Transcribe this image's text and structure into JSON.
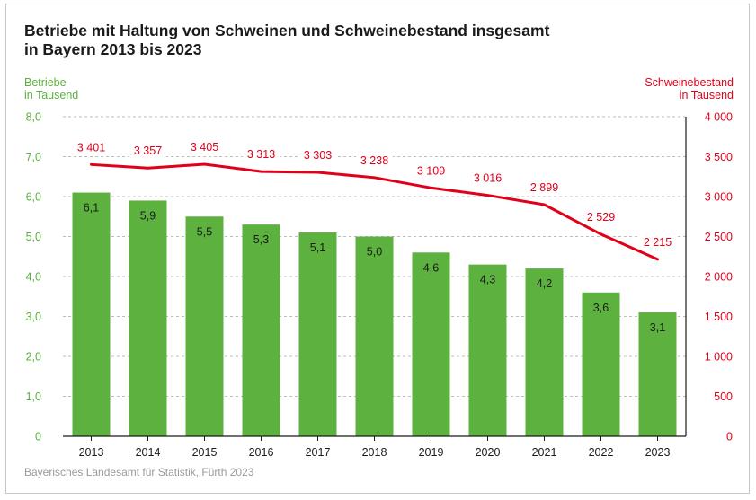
{
  "title": {
    "line1": "Betriebe mit Haltung von Schweinen und Schweinebestand insgesamt",
    "line2": "in Bayern 2013 bis 2023"
  },
  "left_axis_title": {
    "line1": "Betriebe",
    "line2": "in Tausend"
  },
  "right_axis_title": {
    "line1": "Schweinebestand",
    "line2": "in Tausend"
  },
  "source": "Bayerisches Landesamt für Statistik, Fürth 2023",
  "colors": {
    "bars": "#5cb13f",
    "line": "#e1001a",
    "grid": "#bdbdbd",
    "text": "#1a1a1a"
  },
  "chart_data": {
    "type": "bar",
    "title": "Betriebe mit Haltung von Schweinen und Schweinebestand insgesamt in Bayern 2013 bis 2023",
    "categories": [
      "2013",
      "2014",
      "2015",
      "2016",
      "2017",
      "2018",
      "2019",
      "2020",
      "2021",
      "2022",
      "2023"
    ],
    "series": [
      {
        "type": "bar",
        "axis": "left",
        "values": [
          6.1,
          5.9,
          5.5,
          5.3,
          5.1,
          5.0,
          4.6,
          4.3,
          4.2,
          3.6,
          3.1
        ],
        "labels": [
          "6,1",
          "5,9",
          "5,5",
          "5,3",
          "5,1",
          "5,0",
          "4,6",
          "4,3",
          "4,2",
          "3,6",
          "3,1"
        ]
      },
      {
        "type": "line",
        "axis": "right",
        "values": [
          3401,
          3357,
          3405,
          3313,
          3303,
          3238,
          3109,
          3016,
          2899,
          2529,
          2215
        ],
        "labels": [
          "3 401",
          "3 357",
          "3 405",
          "3 313",
          "3 303",
          "3 238",
          "3 109",
          "3 016",
          "2 899",
          "2 529",
          "2 215"
        ]
      }
    ],
    "ylabel": "Betriebe in Tausend",
    "y2label": "Schweinebestand in Tausend",
    "ylim": [
      0,
      8
    ],
    "y2lim": [
      0,
      4000
    ],
    "yticks": [
      "0",
      "1,0",
      "2,0",
      "3,0",
      "4,0",
      "5,0",
      "6,0",
      "7,0",
      "8,0"
    ],
    "y2ticks": [
      "0",
      "500",
      "1 000",
      "1 500",
      "2 000",
      "2 500",
      "3 000",
      "3 500",
      "4 000"
    ],
    "grid": true
  }
}
